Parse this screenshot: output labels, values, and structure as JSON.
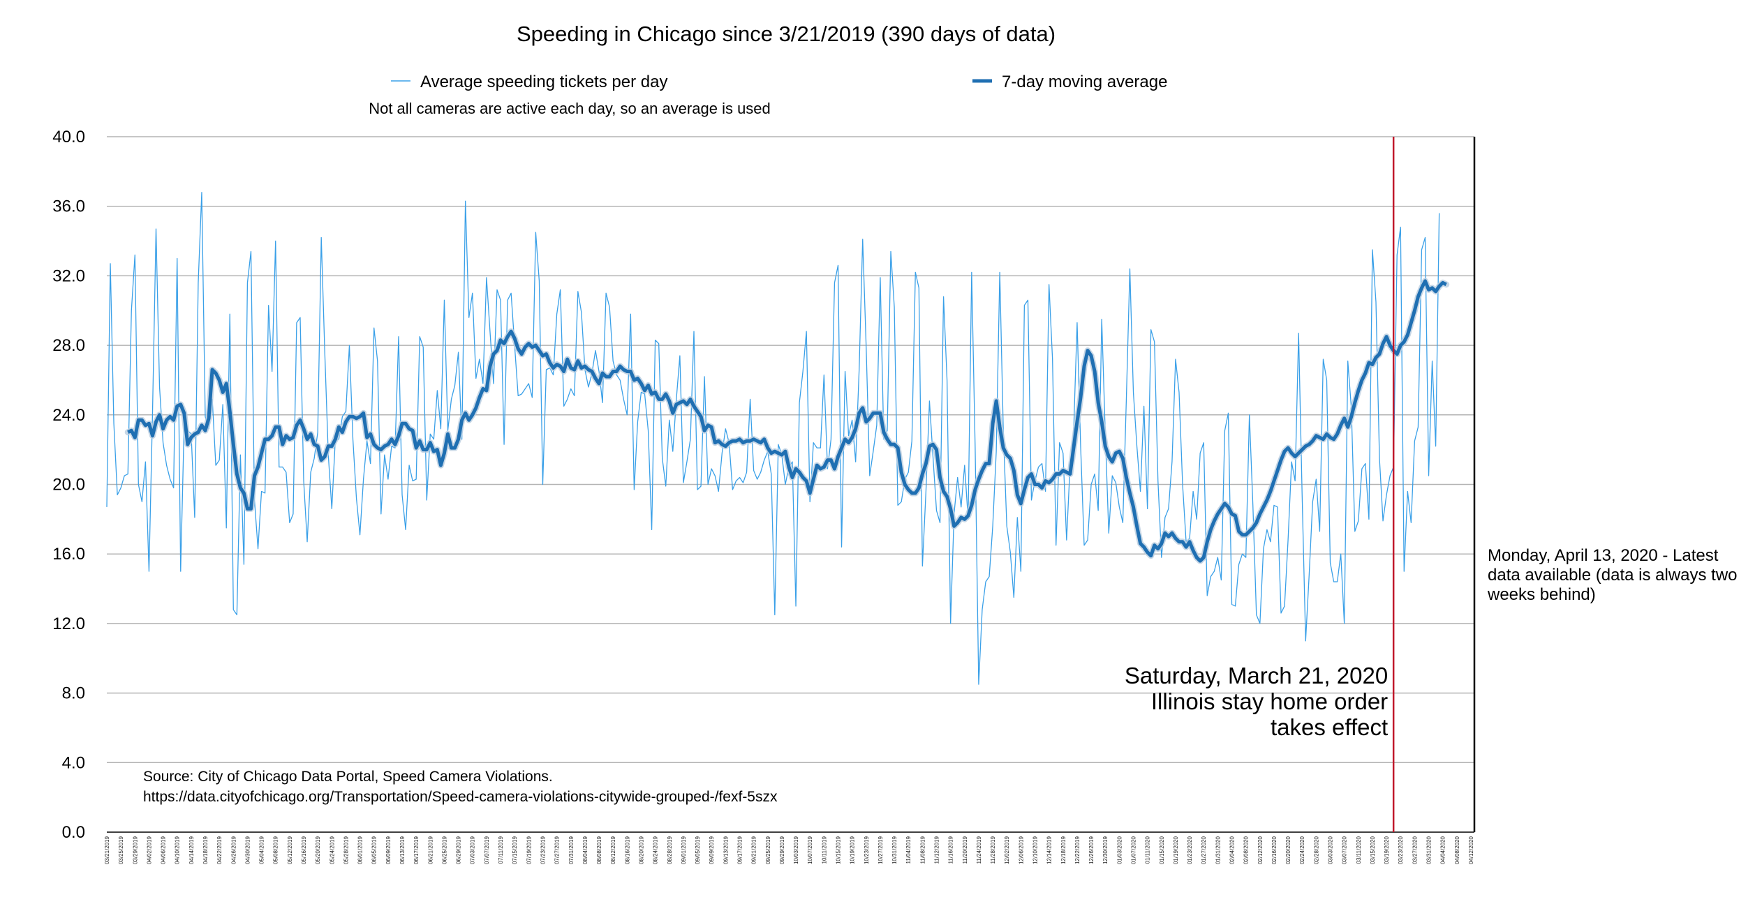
{
  "chart_data": {
    "type": "line",
    "title": "Speeding in Chicago since 3/21/2019 (390 days of data)",
    "note": "Not all cameras are active each day, so an average is used",
    "xlabel": "",
    "ylabel": "",
    "ylim": [
      0,
      40
    ],
    "yticks": [
      "0.0",
      "4.0",
      "8.0",
      "12.0",
      "16.0",
      "20.0",
      "24.0",
      "28.0",
      "32.0",
      "36.0",
      "40.0"
    ],
    "grid": true,
    "x_start": "2019-03-21",
    "x_end": "2020-04-13",
    "x_tick_every_days": 4,
    "legend_position": "top",
    "series": [
      {
        "name": "Average speeding tickets per day",
        "color": "#3aa0e8",
        "style": "thin",
        "x_start": "2019-03-21",
        "values": [
          18.7,
          32.7,
          23.5,
          19.4,
          19.8,
          20.5,
          20.6,
          30.0,
          33.2,
          20.0,
          19.0,
          21.3,
          15.0,
          24.1,
          34.7,
          25.6,
          22.4,
          21.1,
          20.3,
          19.8,
          33.0,
          15.0,
          23.5,
          23.1,
          22.9,
          18.1,
          31.6,
          36.8,
          23.9,
          23.2,
          24.9,
          21.1,
          21.4,
          24.6,
          17.5,
          29.8,
          12.8,
          12.5,
          21.7,
          15.4,
          31.6,
          33.4,
          19.1,
          16.3,
          19.6,
          19.5,
          30.3,
          26.5,
          34.0,
          21.0,
          21.0,
          20.7,
          17.8,
          18.3,
          29.3,
          29.6,
          20.2,
          16.7,
          20.7,
          21.5,
          23.0,
          34.2,
          27.6,
          21.7,
          18.6,
          22.6,
          22.6,
          23.9,
          24.2,
          28.0,
          22.6,
          19.2,
          17.1,
          20.3,
          22.5,
          21.2,
          29.0,
          27.1,
          18.3,
          21.7,
          20.3,
          22.2,
          22.1,
          28.5,
          19.4,
          17.4,
          21.1,
          20.2,
          20.3,
          28.5,
          27.9,
          19.1,
          22.9,
          22.6,
          25.4,
          23.2,
          30.6,
          23.1,
          24.9,
          25.7,
          27.6,
          22.6,
          36.3,
          29.6,
          31.0,
          26.1,
          27.2,
          25.8,
          31.9,
          28.8,
          25.8,
          31.2,
          30.6,
          22.3,
          30.6,
          31.0,
          28.0,
          25.1,
          25.2,
          25.5,
          25.8,
          25.0,
          34.5,
          31.7,
          20.0,
          26.6,
          26.7,
          26.3,
          29.8,
          31.2,
          24.5,
          24.9,
          25.5,
          25.1,
          31.1,
          29.9,
          26.6,
          25.6,
          26.4,
          27.7,
          26.5,
          24.7,
          31.0,
          30.2,
          27.1,
          26.3,
          26.0,
          24.9,
          24.0,
          29.8,
          19.7,
          23.6,
          25.3,
          25.2,
          23.1,
          17.4,
          28.3,
          28.1,
          21.5,
          19.9,
          23.7,
          21.9,
          24.9,
          27.4,
          20.1,
          21.3,
          22.6,
          28.8,
          19.7,
          19.9,
          26.2,
          20.0,
          20.9,
          20.5,
          19.6,
          21.8,
          23.2,
          22.4,
          19.7,
          20.2,
          20.4,
          20.1,
          20.7,
          24.9,
          20.8,
          20.3,
          20.7,
          21.4,
          21.9,
          20.6,
          12.5,
          22.3,
          21.7,
          20.0,
          21.0,
          21.3,
          13.0,
          24.7,
          26.5,
          28.8,
          19.0,
          22.4,
          22.1,
          22.1,
          26.3,
          20.9,
          22.6,
          31.6,
          32.6,
          16.4,
          26.5,
          22.8,
          23.7,
          21.3,
          26.6,
          34.1,
          27.9,
          20.5,
          21.9,
          23.4,
          31.9,
          22.6,
          23.1,
          33.4,
          30.2,
          18.8,
          19.0,
          20.3,
          20.7,
          22.5,
          32.2,
          31.3,
          15.3,
          19.6,
          24.8,
          21.6,
          18.5,
          17.8,
          30.8,
          26.0,
          12.0,
          18.3,
          20.4,
          18.7,
          21.1,
          18.0,
          32.2,
          22.1,
          8.5,
          12.8,
          14.4,
          14.7,
          17.6,
          21.9,
          32.2,
          23.1,
          17.6,
          16.1,
          13.5,
          18.1,
          15.0,
          30.3,
          30.6,
          19.1,
          20.2,
          21.0,
          21.2,
          19.6,
          31.5,
          27.2,
          16.5,
          22.4,
          21.8,
          16.8,
          21.1,
          23.0,
          29.3,
          22.2,
          16.5,
          16.8,
          20.0,
          20.6,
          18.5,
          29.5,
          23.0,
          17.2,
          20.5,
          20.1,
          18.7,
          17.8,
          24.9,
          32.4,
          25.3,
          22.2,
          19.6,
          24.5,
          18.6,
          28.9,
          28.2,
          20.2,
          15.8,
          18.1,
          18.6,
          21.3,
          27.2,
          25.3,
          20.0,
          16.7,
          16.9,
          19.6,
          18.0,
          21.8,
          22.4,
          13.6,
          14.7,
          15.0,
          15.8,
          14.5,
          23.1,
          24.1,
          13.1,
          13.0,
          15.4,
          16.0,
          15.8,
          24.0,
          18.8,
          12.5,
          12.0,
          16.3,
          17.4,
          16.7,
          18.8,
          18.7,
          12.6,
          13.0,
          16.8,
          21.3,
          20.2,
          28.7,
          19.4,
          11.0,
          14.8,
          19.0,
          20.3,
          17.3,
          27.2,
          26.0,
          15.5,
          14.4,
          14.4,
          16.0,
          12.0,
          27.1,
          24.4,
          17.3,
          17.9,
          20.9,
          21.2,
          18.0,
          33.5,
          30.5,
          21.5,
          17.9,
          19.4,
          20.5,
          21.0,
          33.2,
          34.8,
          15.0,
          19.6,
          17.8,
          22.5,
          23.3,
          33.5,
          34.2,
          20.5,
          27.1,
          22.2,
          35.6
        ]
      },
      {
        "name": "7-day moving average",
        "color": "#1f6fb2",
        "style": "thick",
        "x_start": "2019-03-27",
        "values": [
          23.0,
          23.1,
          22.7,
          23.7,
          23.7,
          23.4,
          23.5,
          22.8,
          23.6,
          24.0,
          23.2,
          23.7,
          23.9,
          23.7,
          24.5,
          24.6,
          24.1,
          22.3,
          22.7,
          22.9,
          23.0,
          23.4,
          23.1,
          23.8,
          26.6,
          26.4,
          26.0,
          25.3,
          25.8,
          24.2,
          22.3,
          20.6,
          19.8,
          19.5,
          18.6,
          18.6,
          20.5,
          21.0,
          21.8,
          22.6,
          22.6,
          22.8,
          23.3,
          23.3,
          22.3,
          22.8,
          22.6,
          22.7,
          23.4,
          23.7,
          23.2,
          22.6,
          22.9,
          22.3,
          22.2,
          21.4,
          21.6,
          22.2,
          22.2,
          22.6,
          23.3,
          23.0,
          23.6,
          23.9,
          23.9,
          23.8,
          23.9,
          24.1,
          22.7,
          22.9,
          22.3,
          22.1,
          22.0,
          22.2,
          22.3,
          22.6,
          22.3,
          22.8,
          23.5,
          23.5,
          23.2,
          23.1,
          22.1,
          22.5,
          22.0,
          22.0,
          22.4,
          21.9,
          22.0,
          21.1,
          21.8,
          22.9,
          22.1,
          22.1,
          22.6,
          23.7,
          24.1,
          23.7,
          24.0,
          24.4,
          25.0,
          25.5,
          25.4,
          26.8,
          27.5,
          27.7,
          28.3,
          28.1,
          28.5,
          28.8,
          28.4,
          27.8,
          27.5,
          27.9,
          28.1,
          27.9,
          28.0,
          27.7,
          27.4,
          27.5,
          27.0,
          26.7,
          26.9,
          26.8,
          26.5,
          27.2,
          26.7,
          26.6,
          27.1,
          26.7,
          26.8,
          26.6,
          26.5,
          26.1,
          25.8,
          26.4,
          26.2,
          26.2,
          26.5,
          26.5,
          26.8,
          26.6,
          26.5,
          26.5,
          26.0,
          26.1,
          25.8,
          25.4,
          25.7,
          25.2,
          25.3,
          24.9,
          24.9,
          25.2,
          24.8,
          24.1,
          24.6,
          24.7,
          24.8,
          24.6,
          24.9,
          24.5,
          24.2,
          23.9,
          23.1,
          23.4,
          23.3,
          22.4,
          22.5,
          22.3,
          22.2,
          22.4,
          22.5,
          22.5,
          22.6,
          22.4,
          22.5,
          22.5,
          22.6,
          22.5,
          22.4,
          22.6,
          22.1,
          21.8,
          21.9,
          21.8,
          21.7,
          21.9,
          21.0,
          20.4,
          20.9,
          20.7,
          20.4,
          20.2,
          19.5,
          20.3,
          21.1,
          20.9,
          21.0,
          21.4,
          21.4,
          20.9,
          21.6,
          22.1,
          22.6,
          22.4,
          22.7,
          23.2,
          24.1,
          24.4,
          23.6,
          23.8,
          24.1,
          24.1,
          24.1,
          23.0,
          22.6,
          22.3,
          22.3,
          22.1,
          20.7,
          20.0,
          19.7,
          19.5,
          19.5,
          19.8,
          20.6,
          21.2,
          22.2,
          22.3,
          22.0,
          20.4,
          19.6,
          19.3,
          18.6,
          17.6,
          17.8,
          18.1,
          18.0,
          18.2,
          18.8,
          19.7,
          20.3,
          20.8,
          21.2,
          21.2,
          23.5,
          24.8,
          23.3,
          22.1,
          21.7,
          21.5,
          20.8,
          19.4,
          18.9,
          19.7,
          20.4,
          20.6,
          20.0,
          20.0,
          19.8,
          20.2,
          20.1,
          20.3,
          20.6,
          20.6,
          20.8,
          20.7,
          20.6,
          22.1,
          23.6,
          25.0,
          26.8,
          27.7,
          27.4,
          26.5,
          24.7,
          23.6,
          22.2,
          21.6,
          21.3,
          21.8,
          21.9,
          21.5,
          20.4,
          19.5,
          18.7,
          17.6,
          16.6,
          16.4,
          16.1,
          15.9,
          16.5,
          16.3,
          16.6,
          17.2,
          17.0,
          17.2,
          16.9,
          16.7,
          16.7,
          16.4,
          16.7,
          16.2,
          15.8,
          15.6,
          15.8,
          16.7,
          17.4,
          17.9,
          18.3,
          18.6,
          18.9,
          18.7,
          18.3,
          18.2,
          17.3,
          17.1,
          17.1,
          17.3,
          17.5,
          17.8,
          18.3,
          18.7,
          19.1,
          19.6,
          20.2,
          20.8,
          21.4,
          21.9,
          22.1,
          21.8,
          21.6,
          21.8,
          22.0,
          22.2,
          22.3,
          22.5,
          22.8,
          22.7,
          22.6,
          22.9,
          22.7,
          22.6,
          22.9,
          23.4,
          23.8,
          23.3,
          23.9,
          24.7,
          25.4,
          26.0,
          26.4,
          27.0,
          26.9,
          27.3,
          27.5,
          28.1,
          28.5,
          28.0,
          27.7,
          27.5,
          28.0,
          28.2,
          28.6,
          29.3,
          30.0,
          30.8,
          31.3,
          31.7,
          31.2,
          31.3,
          31.1,
          31.4,
          31.6,
          31.5
        ]
      }
    ],
    "annotations": [
      {
        "date": "2020-03-21",
        "color": "#c0182b",
        "lines": [
          "Saturday, March 21, 2020",
          "Illinois stay home order",
          "takes effect"
        ]
      },
      {
        "date": "2020-04-13",
        "color": "#000000",
        "lines": [
          "Monday, April 13, 2020 - Latest",
          "data available (data is always two",
          "weeks behind)"
        ]
      }
    ],
    "source": {
      "lines": [
        "Source: City of Chicago Data Portal, Speed Camera Violations.",
        "https://data.cityofchicago.org/Transportation/Speed-camera-violations-citywide-grouped-/fexf-5szx"
      ]
    }
  }
}
